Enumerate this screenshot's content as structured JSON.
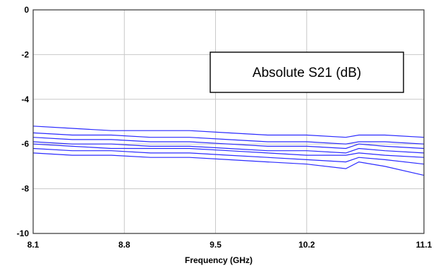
{
  "chart_data": {
    "type": "line",
    "title": "",
    "xlabel": "Frequency (GHz)",
    "ylabel": "",
    "xlim": [
      8.1,
      11.1
    ],
    "ylim": [
      -10,
      0
    ],
    "xticks": [
      8.1,
      8.8,
      9.5,
      10.2,
      11.1
    ],
    "xtick_labels": [
      "8.1",
      "8.8",
      "9.5",
      "10.2",
      "11.1"
    ],
    "yticks": [
      0,
      -2,
      -4,
      -6,
      -8,
      -10
    ],
    "ytick_labels": [
      "0",
      "-2",
      "-4",
      "-6",
      "-8",
      "-10"
    ],
    "grid": true,
    "legend": "none",
    "annotation": "Absolute S21 (dB)",
    "line_color": "#2a2aff",
    "x": [
      8.1,
      8.4,
      8.7,
      9.0,
      9.3,
      9.6,
      9.9,
      10.2,
      10.5,
      10.6,
      10.8,
      11.1
    ],
    "series": [
      {
        "values": [
          -5.2,
          -5.3,
          -5.4,
          -5.4,
          -5.4,
          -5.5,
          -5.6,
          -5.6,
          -5.7,
          -5.6,
          -5.6,
          -5.7
        ]
      },
      {
        "values": [
          -5.5,
          -5.6,
          -5.6,
          -5.7,
          -5.7,
          -5.8,
          -5.9,
          -5.9,
          -6.0,
          -5.9,
          -5.9,
          -6.0
        ]
      },
      {
        "values": [
          -5.7,
          -5.8,
          -5.8,
          -5.9,
          -5.9,
          -6.0,
          -6.1,
          -6.1,
          -6.2,
          -6.0,
          -6.1,
          -6.2
        ]
      },
      {
        "values": [
          -5.9,
          -6.0,
          -6.0,
          -6.1,
          -6.1,
          -6.2,
          -6.3,
          -6.3,
          -6.4,
          -6.2,
          -6.3,
          -6.4
        ]
      },
      {
        "values": [
          -6.0,
          -6.1,
          -6.2,
          -6.2,
          -6.2,
          -6.3,
          -6.4,
          -6.5,
          -6.5,
          -6.4,
          -6.5,
          -6.6
        ]
      },
      {
        "values": [
          -6.2,
          -6.3,
          -6.3,
          -6.4,
          -6.4,
          -6.5,
          -6.6,
          -6.7,
          -6.8,
          -6.6,
          -6.7,
          -6.9
        ]
      },
      {
        "values": [
          -6.4,
          -6.5,
          -6.5,
          -6.6,
          -6.6,
          -6.7,
          -6.8,
          -6.9,
          -7.1,
          -6.8,
          -7.0,
          -7.4
        ]
      }
    ]
  }
}
